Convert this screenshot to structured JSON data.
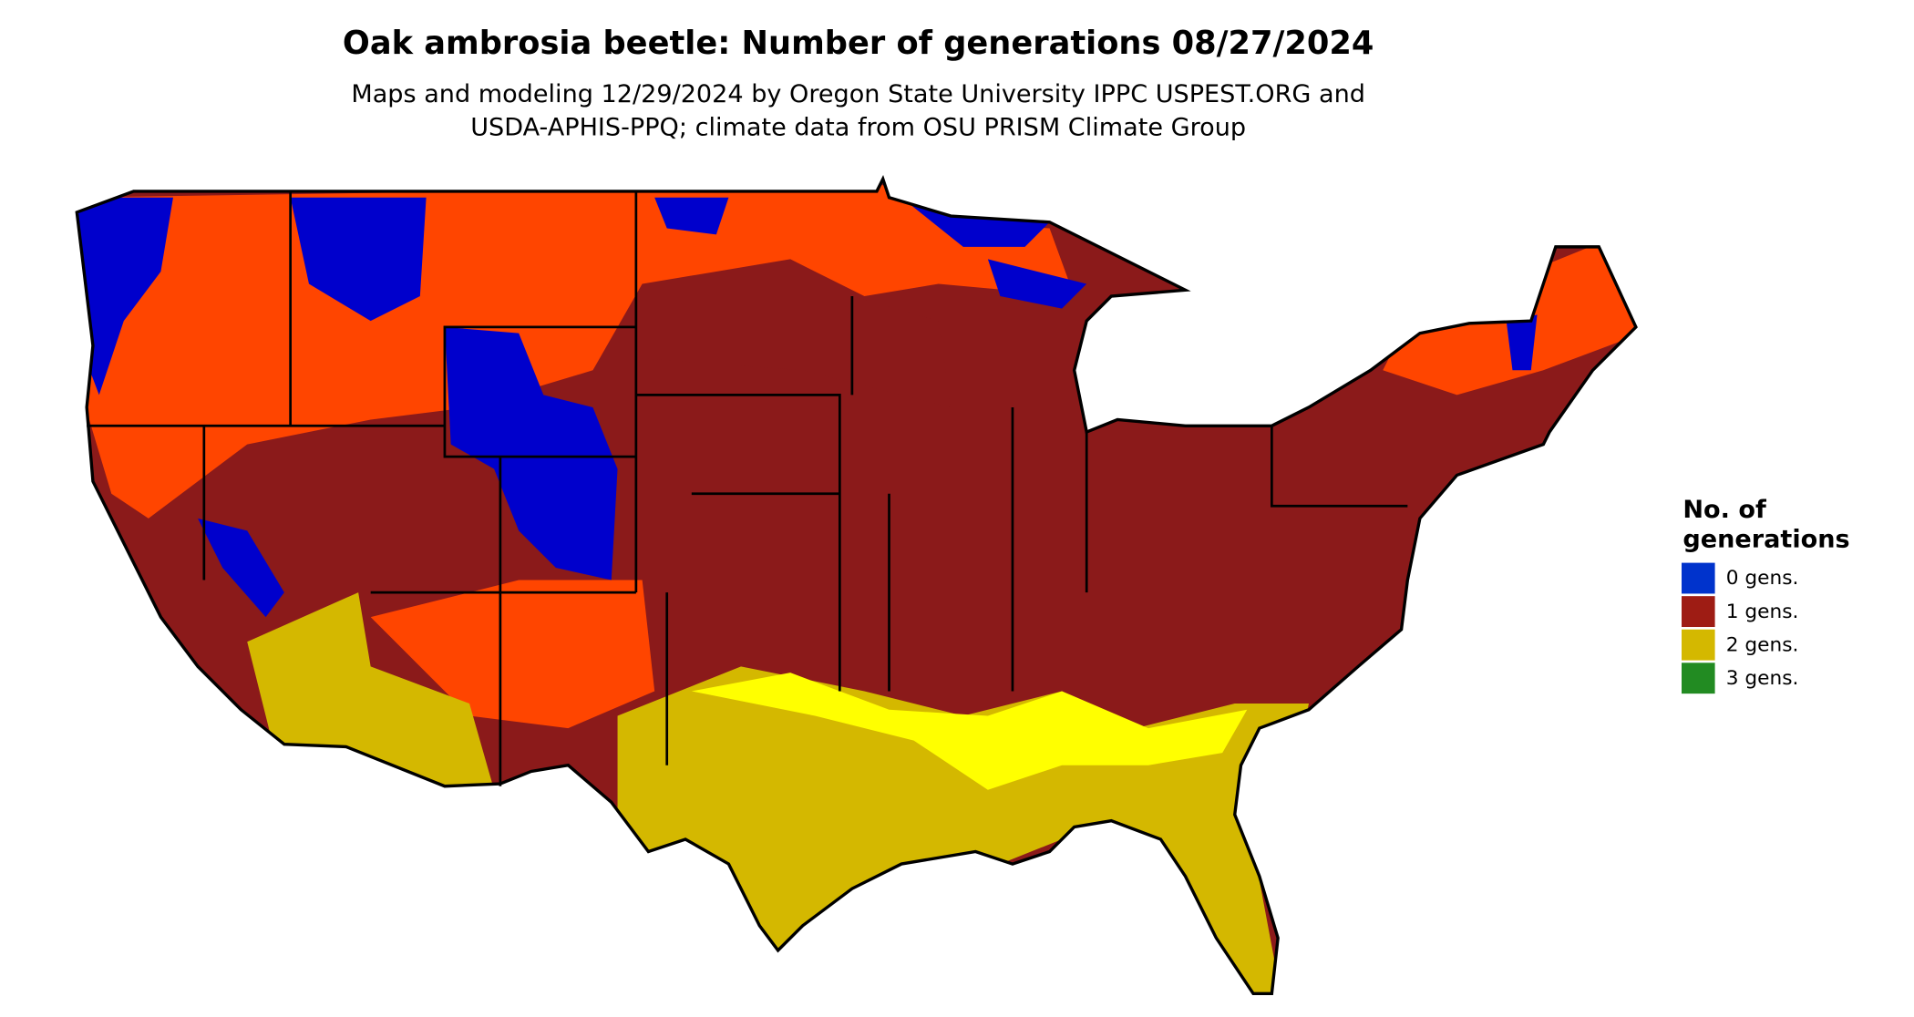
{
  "title": "Oak ambrosia beetle: Number of generations 08/27/2024",
  "subtitle": [
    "Maps and modeling 12/29/2024 by Oregon State University IPPC USPEST.ORG and",
    "USDA-APHIS-PPQ; climate data from OSU PRISM Climate Group"
  ],
  "legend": {
    "title": [
      "No. of",
      "generations"
    ],
    "items": [
      {
        "label": "0 gens.",
        "color": "#0033cc"
      },
      {
        "label": "1 gens.",
        "color": "#9e1c14"
      },
      {
        "label": "2 gens.",
        "color": "#d4b800"
      },
      {
        "label": "3 gens.",
        "color": "#228b22"
      }
    ]
  }
}
